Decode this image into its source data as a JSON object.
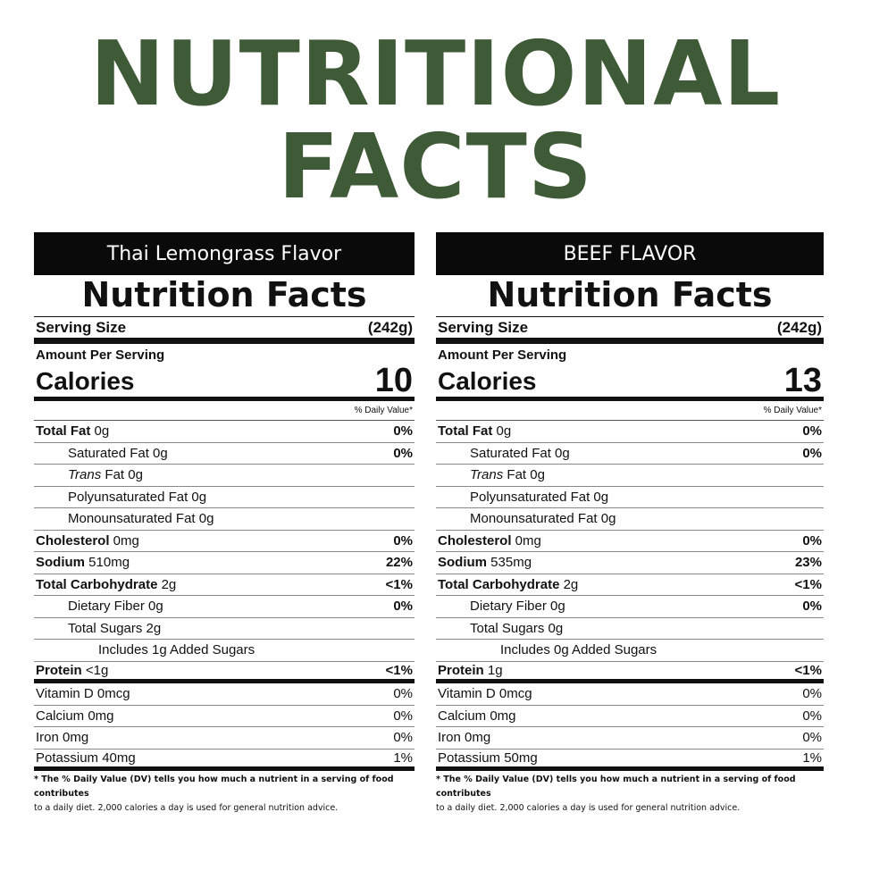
{
  "header": {
    "line1": "NUTRITIONAL",
    "line2": "FACTS"
  },
  "labels": [
    {
      "flavor": "Thai Lemongrass Flavor",
      "nf_title": "Nutrition Facts",
      "serving_label": "Serving Size",
      "serving_value": "(242g)",
      "amount_per_serving": "Amount Per Serving",
      "calories_label": "Calories",
      "calories_value": "10",
      "dv_header": "% Daily Value*",
      "total_fat": "Total Fat",
      "total_fat_amt": " 0g",
      "total_fat_dv": "0%",
      "sat_fat": "Saturated Fat 0g",
      "sat_fat_dv": "0%",
      "trans_fat_a": "Trans",
      "trans_fat_b": " Fat 0g",
      "poly_fat": "Polyunsaturated Fat 0g",
      "mono_fat": "Monounsaturated Fat 0g",
      "cholesterol": "Cholesterol",
      "cholesterol_amt": " 0mg",
      "cholesterol_dv": "0%",
      "sodium": "Sodium",
      "sodium_amt": " 510mg",
      "sodium_dv": "22%",
      "carb": "Total Carbohydrate",
      "carb_amt": " 2g",
      "carb_dv": "<1%",
      "fiber": "Dietary Fiber 0g",
      "fiber_dv": "0%",
      "sugars": "Total Sugars 2g",
      "added_sugars": "Includes 1g Added Sugars",
      "protein": "Protein",
      "protein_amt": " <1g",
      "protein_dv": "<1%",
      "vit_d": "Vitamin D 0mcg",
      "vit_d_dv": "0%",
      "calcium": "Calcium 0mg",
      "calcium_dv": "0%",
      "iron": "Iron 0mg",
      "iron_dv": "0%",
      "potassium": "Potassium 40mg",
      "potassium_dv": "1%",
      "foot_bold": "* The % Daily Value (DV) tells you how much a nutrient in a serving of food contributes",
      "foot_rest": "to a daily diet. 2,000 calories a day is used for general nutrition advice."
    },
    {
      "flavor": "BEEF FLAVOR",
      "nf_title": "Nutrition Facts",
      "serving_label": "Serving Size",
      "serving_value": "(242g)",
      "amount_per_serving": "Amount Per Serving",
      "calories_label": "Calories",
      "calories_value": "13",
      "dv_header": "% Daily Value*",
      "total_fat": "Total Fat",
      "total_fat_amt": " 0g",
      "total_fat_dv": "0%",
      "sat_fat": "Saturated Fat 0g",
      "sat_fat_dv": "0%",
      "trans_fat_a": "Trans",
      "trans_fat_b": " Fat 0g",
      "poly_fat": "Polyunsaturated Fat 0g",
      "mono_fat": "Monounsaturated Fat 0g",
      "cholesterol": "Cholesterol",
      "cholesterol_amt": " 0mg",
      "cholesterol_dv": "0%",
      "sodium": "Sodium",
      "sodium_amt": " 535mg",
      "sodium_dv": "23%",
      "carb": "Total Carbohydrate",
      "carb_amt": " 2g",
      "carb_dv": "<1%",
      "fiber": "Dietary Fiber 0g",
      "fiber_dv": "0%",
      "sugars": "Total Sugars 0g",
      "added_sugars": "Includes 0g Added Sugars",
      "protein": "Protein",
      "protein_amt": " 1g",
      "protein_dv": "<1%",
      "vit_d": "Vitamin D 0mcg",
      "vit_d_dv": "0%",
      "calcium": "Calcium 0mg",
      "calcium_dv": "0%",
      "iron": "Iron 0mg",
      "iron_dv": "0%",
      "potassium": "Potassium 50mg",
      "potassium_dv": "1%",
      "foot_bold": "* The % Daily Value (DV) tells you how much a nutrient in a serving of food contributes",
      "foot_rest": "to a daily diet. 2,000 calories a day is used for general nutrition advice."
    }
  ]
}
